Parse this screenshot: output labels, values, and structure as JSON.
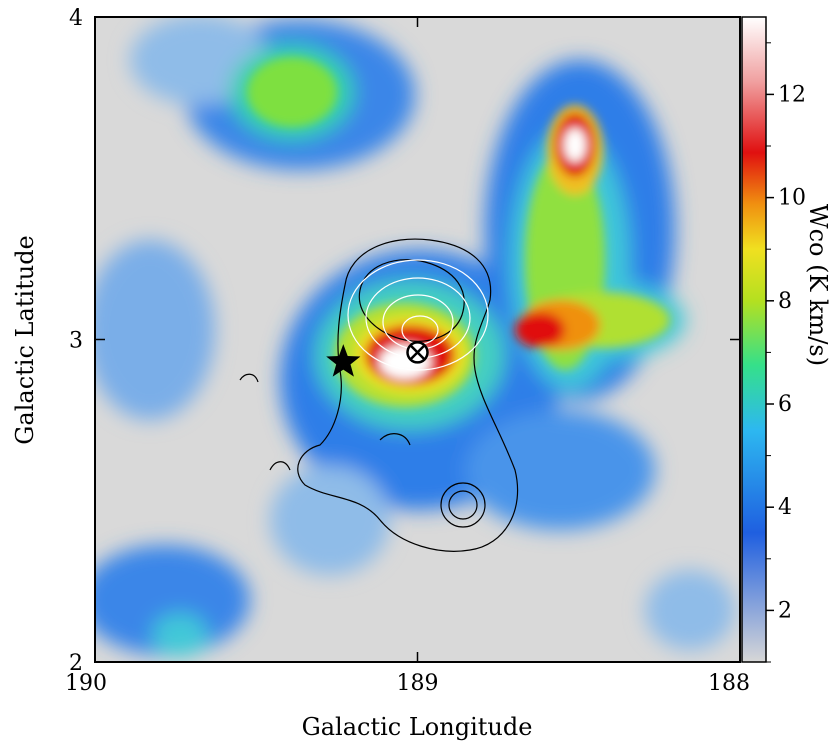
{
  "chart_data": {
    "type": "heatmap",
    "title": "",
    "xlabel": "Galactic Longitude",
    "ylabel": "Galactic Latitude",
    "xlim": [
      190,
      188
    ],
    "ylim": [
      2,
      4
    ],
    "x_ticks": [
      {
        "value": 190,
        "label": "190"
      },
      {
        "value": 189,
        "label": "189"
      },
      {
        "value": 188,
        "label": "188"
      }
    ],
    "y_ticks": [
      {
        "value": 2,
        "label": "2"
      },
      {
        "value": 3,
        "label": "3"
      },
      {
        "value": 4,
        "label": "4"
      }
    ],
    "colorbar": {
      "label": "Wco (K km/s)",
      "range": [
        1,
        13.5
      ],
      "ticks": [
        {
          "value": 2,
          "label": "2"
        },
        {
          "value": 4,
          "label": "4"
        },
        {
          "value": 6,
          "label": "6"
        },
        {
          "value": 8,
          "label": "8"
        },
        {
          "value": 10,
          "label": "10"
        },
        {
          "value": 12,
          "label": "12"
        }
      ],
      "colors": [
        "#d7d7d7",
        "#1f5fe0",
        "#2db8f0",
        "#35e08a",
        "#b4e020",
        "#f0e020",
        "#f09010",
        "#e01010",
        "#f0a0a0",
        "#ffffff"
      ]
    },
    "background_color": "#d9d9d9",
    "features": [
      {
        "name": "peak-intensity",
        "l": 189.0,
        "b": 2.92,
        "value": 13
      },
      {
        "name": "northeast-peak",
        "l": 188.5,
        "b": 3.62,
        "value": 13
      },
      {
        "name": "ridge-east",
        "l": 188.6,
        "b": 3.0,
        "value": 11
      },
      {
        "name": "northwest-clump",
        "l": 189.6,
        "b": 3.78,
        "value": 7
      }
    ],
    "markers": [
      {
        "name": "star-marker",
        "l": 189.23,
        "b": 2.93,
        "symbol": "star"
      },
      {
        "name": "circled-x-marker",
        "l": 189.0,
        "b": 2.96,
        "symbol": "circled-x"
      }
    ]
  }
}
